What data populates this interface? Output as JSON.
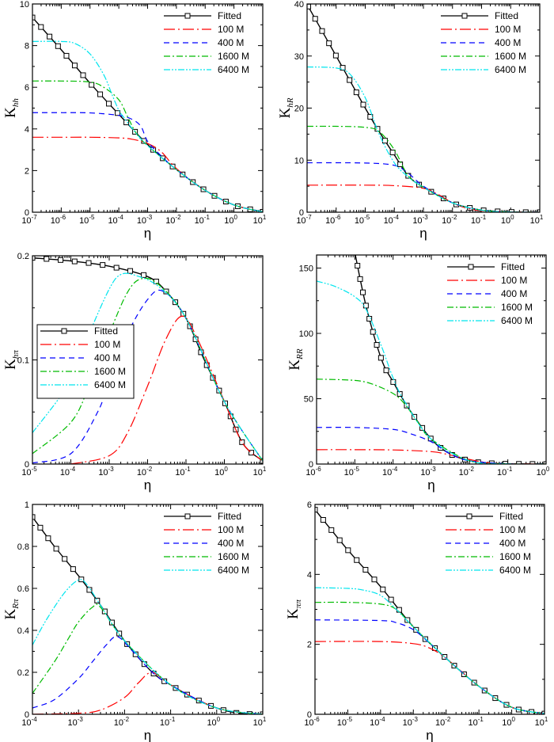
{
  "chart_data": [
    {
      "type": "line",
      "ylabel_main": "K",
      "ylabel_sub": "hh",
      "xlabel": "η",
      "x_scale": "log",
      "xlim": [
        1e-07,
        10
      ],
      "ylim": [
        0,
        10
      ],
      "x_ticks": [
        -7,
        -6,
        -5,
        -4,
        -3,
        -2,
        -1,
        0,
        1
      ],
      "y_ticks": [
        "0",
        "2",
        "4",
        "6",
        "8",
        "10"
      ],
      "legend": {
        "placement": "top-right",
        "boxed": false
      },
      "series": [
        {
          "name": "Fitted",
          "style": "solid-square",
          "color": "#000000",
          "x": [
            1e-07,
            1e-06,
            1e-05,
            0.0001,
            0.001,
            0.01,
            0.1,
            1,
            10
          ],
          "y": [
            9.35,
            7.8,
            6.2,
            4.7,
            3.25,
            2.05,
            1.05,
            0.35,
            0.02
          ]
        },
        {
          "name": "100 M",
          "style": "long-dash",
          "color": "#ff0000",
          "x": [
            1e-07,
            1e-06,
            1e-05,
            0.0001,
            0.0003,
            0.001,
            0.003,
            0.01,
            0.1,
            1,
            10
          ],
          "y": [
            3.6,
            3.6,
            3.6,
            3.57,
            3.5,
            3.3,
            2.9,
            2.1,
            1.05,
            0.35,
            0.02
          ]
        },
        {
          "name": "400 M",
          "style": "dash",
          "color": "#0000ff",
          "x": [
            1e-07,
            1e-06,
            1e-05,
            0.0001,
            0.0003,
            0.0006,
            0.001,
            0.003,
            0.01,
            0.1,
            1,
            10
          ],
          "y": [
            4.78,
            4.78,
            4.77,
            4.65,
            4.45,
            4.1,
            3.4,
            2.7,
            2.05,
            1.05,
            0.35,
            0.02
          ]
        },
        {
          "name": "1600 M",
          "style": "dash-dot",
          "color": "#00bb00",
          "x": [
            1e-07,
            1e-06,
            1e-05,
            3e-05,
            0.0001,
            0.0002,
            0.0004,
            0.001,
            0.01,
            0.1,
            1,
            10
          ],
          "y": [
            6.3,
            6.3,
            6.25,
            6.0,
            5.4,
            4.6,
            3.8,
            3.2,
            2.05,
            1.05,
            0.35,
            0.02
          ]
        },
        {
          "name": "6400 M",
          "style": "dash-dot-dot",
          "color": "#00e5ee",
          "x": [
            1e-07,
            1e-06,
            3e-06,
            1e-05,
            3e-05,
            6e-05,
            0.0001,
            0.00015,
            0.0003,
            0.001,
            0.01,
            0.1,
            1,
            10
          ],
          "y": [
            8.2,
            8.2,
            8.1,
            7.6,
            6.6,
            5.6,
            4.9,
            4.55,
            4.0,
            3.2,
            2.05,
            1.05,
            0.35,
            0.02
          ]
        }
      ]
    },
    {
      "type": "line",
      "ylabel_main": "K",
      "ylabel_sub": "hR",
      "xlabel": "η",
      "x_scale": "log",
      "xlim": [
        1e-07,
        10
      ],
      "ylim": [
        0,
        40
      ],
      "x_ticks": [
        -7,
        -6,
        -5,
        -4,
        -3,
        -2,
        -1,
        0,
        1
      ],
      "y_ticks": [
        "0",
        "10",
        "20",
        "30",
        "40"
      ],
      "legend": {
        "placement": "top-right",
        "boxed": false
      },
      "series": [
        {
          "name": "Fitted",
          "style": "solid-square",
          "color": "#000000",
          "x": [
            1.1e-07,
            1e-06,
            1e-05,
            3e-05,
            0.0001,
            0.0003,
            0.001,
            0.01,
            0.03,
            0.1,
            1,
            10
          ],
          "y": [
            39.5,
            30,
            20,
            15.5,
            11,
            7,
            4.8,
            1.8,
            1.0,
            0.4,
            0.05,
            0
          ]
        },
        {
          "name": "100 M",
          "style": "long-dash",
          "color": "#ff0000",
          "x": [
            1e-07,
            1e-05,
            0.0001,
            0.001,
            0.003,
            0.01,
            0.03,
            0.1,
            1,
            10
          ],
          "y": [
            5.2,
            5.2,
            5.1,
            4.6,
            3.5,
            1.8,
            0.8,
            0.3,
            0.05,
            0
          ]
        },
        {
          "name": "400 M",
          "style": "dash",
          "color": "#0000ff",
          "x": [
            1e-07,
            1e-05,
            0.0001,
            0.0003,
            0.001,
            0.01,
            0.1,
            1,
            10
          ],
          "y": [
            9.5,
            9.45,
            9.0,
            7.5,
            5.0,
            1.8,
            0.4,
            0.05,
            0
          ]
        },
        {
          "name": "1600 M",
          "style": "dash-dot",
          "color": "#00bb00",
          "x": [
            1e-07,
            1e-06,
            1e-05,
            3e-05,
            0.0001,
            0.0003,
            0.001,
            0.01,
            0.1,
            1,
            10
          ],
          "y": [
            16.5,
            16.5,
            16.3,
            15.5,
            12.0,
            7.0,
            4.8,
            1.8,
            0.4,
            0.05,
            0
          ]
        },
        {
          "name": "6400 M",
          "style": "dash-dot-dot",
          "color": "#00e5ee",
          "x": [
            1e-07,
            1e-06,
            3e-06,
            1e-05,
            3e-05,
            0.0001,
            0.0003,
            0.001,
            0.01,
            0.1,
            1,
            10
          ],
          "y": [
            27.9,
            27.7,
            26.5,
            22,
            15,
            9.5,
            6.8,
            4.8,
            1.8,
            0.4,
            0.05,
            0
          ]
        }
      ]
    },
    {
      "type": "line",
      "ylabel_main": "K",
      "ylabel_sub": "hπ",
      "xlabel": "η",
      "x_scale": "log",
      "xlim": [
        1e-05,
        10
      ],
      "ylim": [
        0,
        0.2
      ],
      "x_ticks": [
        -5,
        -4,
        -3,
        -2,
        -1,
        0,
        1
      ],
      "y_ticks": [
        "0",
        "0.1",
        "0.2"
      ],
      "legend": {
        "placement": "middle-left",
        "boxed": true
      },
      "series": [
        {
          "name": "Fitted",
          "style": "solid-square",
          "color": "#000000",
          "x": [
            1e-05,
            0.0001,
            0.001,
            0.01,
            0.03,
            0.1,
            0.3,
            1,
            3,
            10
          ],
          "y": [
            0.198,
            0.195,
            0.19,
            0.18,
            0.166,
            0.14,
            0.1,
            0.06,
            0.02,
            0.003
          ]
        },
        {
          "name": "100 M",
          "style": "long-dash",
          "color": "#ff0000",
          "x": [
            0.0001,
            0.001,
            0.003,
            0.01,
            0.03,
            0.08,
            0.2,
            1,
            3,
            10
          ],
          "y": [
            0,
            0.008,
            0.03,
            0.075,
            0.12,
            0.142,
            0.12,
            0.06,
            0.02,
            0.003
          ]
        },
        {
          "name": "400 M",
          "style": "dash",
          "color": "#0000ff",
          "x": [
            1e-05,
            0.0001,
            0.0005,
            0.001,
            0.003,
            0.01,
            0.025,
            0.1,
            1,
            10
          ],
          "y": [
            0.001,
            0.01,
            0.05,
            0.08,
            0.125,
            0.158,
            0.166,
            0.14,
            0.06,
            0.003
          ]
        },
        {
          "name": "1600 M",
          "style": "dash-dot",
          "color": "#00bb00",
          "x": [
            1e-05,
            0.0001,
            0.0003,
            0.001,
            0.003,
            0.007,
            0.02,
            0.1,
            1,
            10
          ],
          "y": [
            0.01,
            0.04,
            0.075,
            0.125,
            0.165,
            0.178,
            0.172,
            0.14,
            0.06,
            0.003
          ]
        },
        {
          "name": "6400 M",
          "style": "dash-dot-dot",
          "color": "#00e5ee",
          "x": [
            1e-05,
            0.0001,
            0.0003,
            0.001,
            0.002,
            0.005,
            0.02,
            0.1,
            1,
            10
          ],
          "y": [
            0.03,
            0.08,
            0.125,
            0.168,
            0.182,
            0.181,
            0.17,
            0.14,
            0.06,
            0.003
          ]
        }
      ]
    },
    {
      "type": "line",
      "ylabel_main": "K",
      "ylabel_sub": "RR",
      "xlabel": "η",
      "x_scale": "log",
      "xlim": [
        1e-06,
        1
      ],
      "ylim": [
        0,
        160
      ],
      "x_ticks": [
        -6,
        -5,
        -4,
        -3,
        -2,
        -1,
        0
      ],
      "y_ticks": [
        "0",
        "50",
        "100",
        "150"
      ],
      "legend": {
        "placement": "top-right",
        "boxed": false
      },
      "series": [
        {
          "name": "Fitted",
          "style": "solid-square",
          "color": "#000000",
          "x": [
            1e-05,
            2e-05,
            5e-05,
            0.0001,
            0.00025,
            0.001,
            0.003,
            0.01,
            0.03,
            0.1,
            1
          ],
          "y": [
            162,
            120,
            80,
            63,
            43,
            19,
            8,
            2.5,
            0.8,
            0.2,
            0
          ]
        },
        {
          "name": "100 M",
          "style": "long-dash",
          "color": "#ff0000",
          "x": [
            1e-06,
            1e-05,
            0.0001,
            0.001,
            0.003,
            0.01,
            0.03,
            0.1,
            1
          ],
          "y": [
            11,
            11,
            10.8,
            9.5,
            7,
            3.5,
            1,
            0.2,
            0
          ]
        },
        {
          "name": "400 M",
          "style": "dash",
          "color": "#0000ff",
          "x": [
            1e-06,
            1e-05,
            0.0001,
            0.0003,
            0.001,
            0.003,
            0.01,
            0.1,
            1
          ],
          "y": [
            28,
            28,
            26.5,
            23,
            17,
            8,
            2.5,
            0.2,
            0
          ]
        },
        {
          "name": "1600 M",
          "style": "dash-dot",
          "color": "#00bb00",
          "x": [
            1e-06,
            1e-05,
            3e-05,
            0.0001,
            0.0002,
            0.0005,
            0.001,
            0.01,
            0.1,
            1
          ],
          "y": [
            65,
            64,
            61,
            54,
            46,
            30,
            19,
            2.5,
            0.2,
            0
          ]
        },
        {
          "name": "6400 M",
          "style": "dash-dot-dot",
          "color": "#00e5ee",
          "x": [
            1e-06,
            3e-06,
            1e-05,
            2e-05,
            5e-05,
            0.0001,
            0.0002,
            0.001,
            0.01,
            0.1,
            1
          ],
          "y": [
            140,
            136,
            128,
            118,
            90,
            66,
            48,
            19,
            2.5,
            0.2,
            0
          ]
        }
      ]
    },
    {
      "type": "line",
      "ylabel_main": "K",
      "ylabel_sub": "Rπ",
      "xlabel": "η",
      "x_scale": "log",
      "xlim": [
        0.0001,
        10
      ],
      "ylim": [
        0,
        1
      ],
      "x_ticks": [
        -4,
        -3,
        -2,
        -1,
        0,
        1
      ],
      "y_ticks": [
        "0",
        "0.2",
        "0.4",
        "0.6",
        "0.8",
        "1"
      ],
      "legend": {
        "placement": "top-right",
        "boxed": false
      },
      "series": [
        {
          "name": "Fitted",
          "style": "solid-square",
          "color": "#000000",
          "x": [
            0.0001,
            0.0003,
            0.001,
            0.003,
            0.01,
            0.04,
            0.1,
            0.3,
            1,
            3,
            10
          ],
          "y": [
            0.94,
            0.8,
            0.66,
            0.52,
            0.35,
            0.2,
            0.14,
            0.08,
            0.03,
            0.005,
            0
          ]
        },
        {
          "name": "100 M",
          "style": "long-dash",
          "color": "#ff0000",
          "x": [
            0.0001,
            0.001,
            0.003,
            0.01,
            0.02,
            0.04,
            0.1,
            1,
            10
          ],
          "y": [
            0,
            0.005,
            0.02,
            0.08,
            0.15,
            0.2,
            0.14,
            0.03,
            0
          ]
        },
        {
          "name": "400 M",
          "style": "dash",
          "color": "#0000ff",
          "x": [
            0.0001,
            0.0003,
            0.001,
            0.002,
            0.004,
            0.007,
            0.015,
            0.04,
            0.1,
            1,
            10
          ],
          "y": [
            0.03,
            0.07,
            0.17,
            0.25,
            0.33,
            0.37,
            0.3,
            0.2,
            0.14,
            0.03,
            0
          ]
        },
        {
          "name": "1600 M",
          "style": "dash-dot",
          "color": "#00bb00",
          "x": [
            0.0001,
            0.0003,
            0.0006,
            0.001,
            0.002,
            0.003,
            0.01,
            0.1,
            1,
            10
          ],
          "y": [
            0.1,
            0.25,
            0.36,
            0.44,
            0.51,
            0.51,
            0.35,
            0.14,
            0.03,
            0
          ]
        },
        {
          "name": "6400 M",
          "style": "dash-dot-dot",
          "color": "#00e5ee",
          "x": [
            0.0001,
            0.0002,
            0.0005,
            0.001,
            0.0015,
            0.003,
            0.01,
            0.1,
            1,
            10
          ],
          "y": [
            0.33,
            0.45,
            0.58,
            0.64,
            0.62,
            0.52,
            0.35,
            0.14,
            0.03,
            0
          ]
        }
      ]
    },
    {
      "type": "line",
      "ylabel_main": "K",
      "ylabel_sub": "ππ",
      "xlabel": "η",
      "x_scale": "log",
      "xlim": [
        1e-06,
        10
      ],
      "ylim": [
        0,
        6
      ],
      "x_ticks": [
        -6,
        -5,
        -4,
        -3,
        -2,
        -1,
        0,
        1
      ],
      "y_ticks": [
        "0",
        "2",
        "4",
        "6"
      ],
      "legend": {
        "placement": "top-right",
        "boxed": false
      },
      "series": [
        {
          "name": "Fitted",
          "style": "solid-square",
          "color": "#000000",
          "x": [
            1e-06,
            1e-05,
            0.0001,
            0.001,
            0.01,
            0.1,
            1,
            10
          ],
          "y": [
            5.85,
            4.7,
            3.65,
            2.5,
            1.6,
            0.8,
            0.2,
            0.02
          ]
        },
        {
          "name": "100 M",
          "style": "long-dash",
          "color": "#ff0000",
          "x": [
            1e-06,
            0.0001,
            0.001,
            0.003,
            0.01,
            0.1,
            1,
            10
          ],
          "y": [
            2.08,
            2.08,
            2.02,
            1.9,
            1.6,
            0.8,
            0.2,
            0.02
          ]
        },
        {
          "name": "400 M",
          "style": "dash",
          "color": "#0000ff",
          "x": [
            1e-06,
            0.0001,
            0.0003,
            0.001,
            0.003,
            0.01,
            0.1,
            1,
            10
          ],
          "y": [
            2.7,
            2.68,
            2.62,
            2.42,
            2.05,
            1.6,
            0.8,
            0.2,
            0.02
          ]
        },
        {
          "name": "1600 M",
          "style": "dash-dot",
          "color": "#00bb00",
          "x": [
            1e-06,
            1e-05,
            0.0001,
            0.0003,
            0.001,
            0.01,
            0.1,
            1,
            10
          ],
          "y": [
            3.2,
            3.2,
            3.15,
            3.0,
            2.5,
            1.6,
            0.8,
            0.2,
            0.02
          ]
        },
        {
          "name": "6400 M",
          "style": "dash-dot-dot",
          "color": "#00e5ee",
          "x": [
            1e-06,
            1e-05,
            3e-05,
            0.0001,
            0.0003,
            0.001,
            0.01,
            0.1,
            1,
            10
          ],
          "y": [
            3.62,
            3.6,
            3.55,
            3.4,
            3.0,
            2.5,
            1.6,
            0.8,
            0.2,
            0.02
          ]
        }
      ]
    }
  ]
}
